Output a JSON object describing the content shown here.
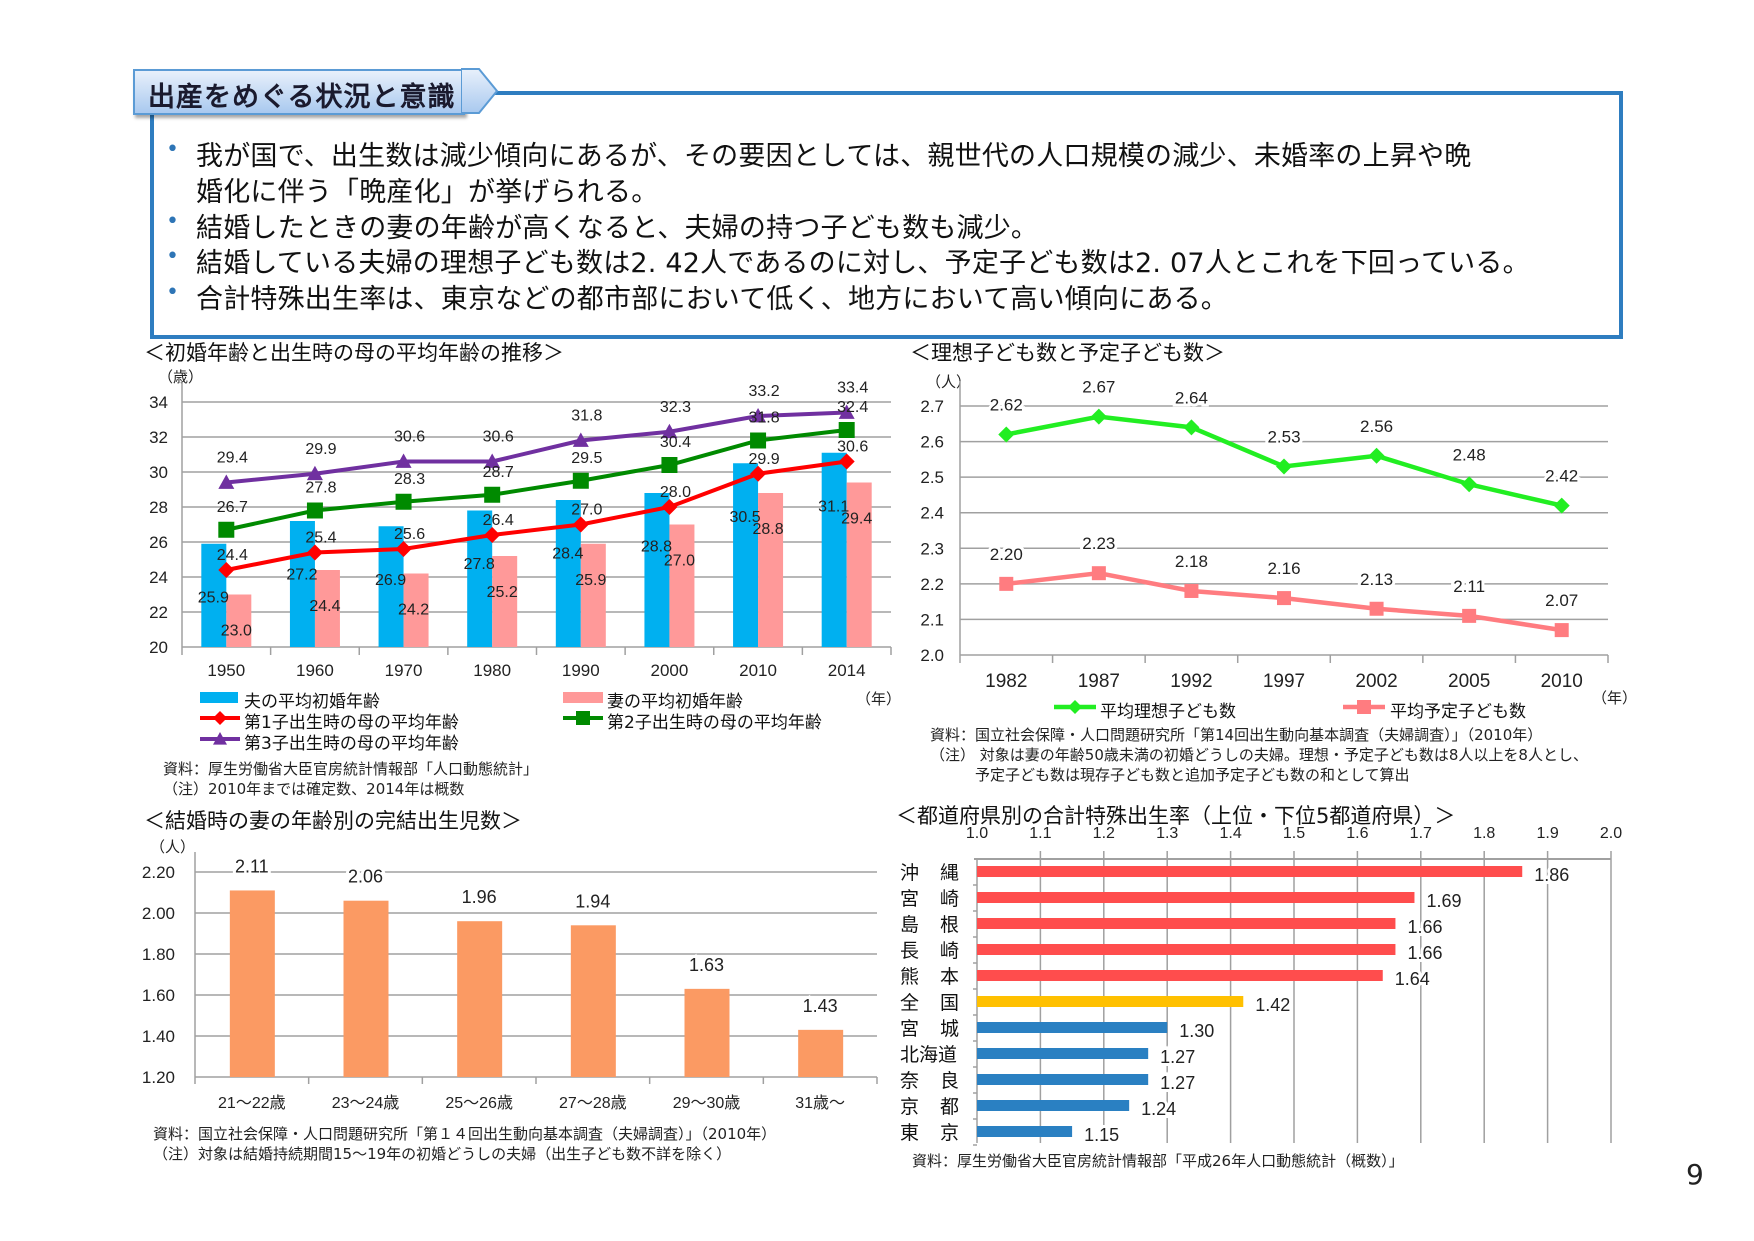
{
  "header": {
    "title": "出産をめぐる状況と意識"
  },
  "bullets": [
    [
      "我が国で、出生数は減少傾向にあるが、その要因としては、親世代の人口規模の減少、未婚率の上昇や晩",
      "婚化に伴う「晩産化」が挙げられる。"
    ],
    [
      "結婚したときの妻の年齢が高くなると、夫婦の持つ子ども数も減少。"
    ],
    [
      "結婚している夫婦の理想子ども数は2. 42人であるのに対し、予定子ども数は2. 07人とこれを下回っている。"
    ],
    [
      "合計特殊出生率は、東京などの都市部において低く、地方において高い傾向にある。"
    ]
  ],
  "page_number": "9",
  "chart_data": [
    {
      "type": "bar+line",
      "title": "＜初婚年齢と出生時の母の平均年齢の推移＞",
      "ylabel": "（歳）",
      "xlabel": "（年）",
      "categories": [
        "1950",
        "1960",
        "1970",
        "1980",
        "1990",
        "2000",
        "2010",
        "2014"
      ],
      "ylim": [
        20,
        34
      ],
      "yticks": [
        "20",
        "22",
        "24",
        "26",
        "28",
        "30",
        "32",
        "34"
      ],
      "grid": true,
      "legend_position": "bottom",
      "series": [
        {
          "name": "夫の平均初婚年齢",
          "kind": "bar",
          "color": "#00b0f0",
          "values": [
            25.9,
            27.2,
            26.9,
            27.8,
            28.4,
            28.8,
            30.5,
            31.1
          ]
        },
        {
          "name": "妻の平均初婚年齢",
          "kind": "bar",
          "color": "#ff9999",
          "values": [
            23.0,
            24.4,
            24.2,
            25.2,
            25.9,
            27.0,
            28.8,
            29.4
          ]
        },
        {
          "name": "第1子出生時の母の平均年齢",
          "kind": "line",
          "marker": "diamond",
          "color": "#ff0000",
          "values": [
            24.4,
            25.4,
            25.6,
            26.4,
            27.0,
            28.0,
            29.9,
            30.6
          ]
        },
        {
          "name": "第2子出生時の母の平均年齢",
          "kind": "line",
          "marker": "square",
          "color": "#008a00",
          "values": [
            26.7,
            27.8,
            28.3,
            28.7,
            29.5,
            30.4,
            31.8,
            32.4
          ]
        },
        {
          "name": "第3子出生時の母の平均年齢",
          "kind": "line",
          "marker": "triangle",
          "color": "#7030a0",
          "values": [
            29.4,
            29.9,
            30.6,
            30.6,
            31.8,
            32.3,
            33.2,
            33.4
          ]
        }
      ],
      "data_labels": {
        "s0": [
          "25.9",
          "27.2",
          "26.9",
          "27.8",
          "28.4",
          "28.8",
          "30.5",
          "31.1"
        ],
        "s1": [
          "23.0",
          "24.4",
          "24.2",
          "25.2",
          "25.9",
          "27.0",
          "28.8",
          "29.4"
        ],
        "s2": [
          "24.4",
          "25.4",
          "25.6",
          "26.4",
          "27.0",
          "28.0",
          "29.9",
          "30.6"
        ],
        "s3": [
          "26.7",
          "27.8",
          "28.3",
          "28.7",
          "29.5",
          "30.4",
          "31.8",
          "32.4"
        ],
        "s4": [
          "29.4",
          "29.9",
          "30.6",
          "30.6",
          "31.8",
          "32.3",
          "33.2",
          "33.4"
        ]
      },
      "source": [
        "資料：厚生労働省大臣官房統計情報部「人口動態統計」",
        "（注）2010年までは確定数、2014年は概数"
      ]
    },
    {
      "type": "line",
      "title": "＜理想子ども数と予定子ども数＞",
      "ylabel": "（人）",
      "xlabel": "（年）",
      "categories": [
        "1982",
        "1987",
        "1992",
        "1997",
        "2002",
        "2005",
        "2010"
      ],
      "ylim": [
        2.0,
        2.7
      ],
      "yticks": [
        "2.0",
        "2.1",
        "2.2",
        "2.3",
        "2.4",
        "2.5",
        "2.6",
        "2.7"
      ],
      "grid": true,
      "legend_position": "bottom",
      "series": [
        {
          "name": "平均理想子ども数",
          "marker": "diamond",
          "color": "#22ee22",
          "values": [
            2.62,
            2.67,
            2.64,
            2.53,
            2.56,
            2.48,
            2.42
          ]
        },
        {
          "name": "平均予定子ども数",
          "marker": "square",
          "color": "#ff7c80",
          "values": [
            2.2,
            2.23,
            2.18,
            2.16,
            2.13,
            2.11,
            2.07
          ]
        }
      ],
      "data_labels": {
        "s0": [
          "2.62",
          "2.67",
          "2.64",
          "2.53",
          "2.56",
          "2.48",
          "2.42"
        ],
        "s1": [
          "2.20",
          "2.23",
          "2.18",
          "2.16",
          "2.13",
          "2.11",
          "2.07"
        ]
      },
      "source": [
        "資料：国立社会保障・人口問題研究所「第14回出生動向基本調査（夫婦調査）」（2010年）",
        "（注） 対象は妻の年齢50歳未満の初婚どうしの夫婦。理想・予定子ども数は8人以上を8人とし、",
        "予定子ども数は現存子ども数と追加予定子ども数の和として算出"
      ]
    },
    {
      "type": "bar",
      "title": "＜結婚時の妻の年齢別の完結出生児数＞",
      "ylabel": "（人）",
      "categories": [
        "21～22歳",
        "23～24歳",
        "25～26歳",
        "27～28歳",
        "29～30歳",
        "31歳～"
      ],
      "values": [
        2.11,
        2.06,
        1.96,
        1.94,
        1.63,
        1.43
      ],
      "data_labels": [
        "2.11",
        "2.06",
        "1.96",
        "1.94",
        "1.63",
        "1.43"
      ],
      "color": "#fb9a63",
      "ylim": [
        1.2,
        2.2
      ],
      "yticks": [
        "1.20",
        "1.40",
        "1.60",
        "1.80",
        "2.00",
        "2.20"
      ],
      "grid": true,
      "source": [
        "資料：国立社会保障・人口問題研究所「第１４回出生動向基本調査（夫婦調査）」（2010年）",
        "（注）対象は結婚持続期間15～19年の初婚どうしの夫婦（出生子ども数不詳を除く）"
      ]
    },
    {
      "type": "horizontal-bar",
      "title": "＜都道府県別の合計特殊出生率（上位・下位5都道府県）＞",
      "xlim": [
        1.0,
        2.0
      ],
      "xticks": [
        "1.0",
        "1.1",
        "1.2",
        "1.3",
        "1.4",
        "1.5",
        "1.6",
        "1.7",
        "1.8",
        "1.9",
        "2.0"
      ],
      "grid": true,
      "rows": [
        {
          "label": [
            "沖",
            "縄"
          ],
          "value": 1.86,
          "text": "1.86",
          "color": "#ff4d4d"
        },
        {
          "label": [
            "宮",
            "崎"
          ],
          "value": 1.69,
          "text": "1.69",
          "color": "#ff4d4d"
        },
        {
          "label": [
            "島",
            "根"
          ],
          "value": 1.66,
          "text": "1.66",
          "color": "#ff4d4d"
        },
        {
          "label": [
            "長",
            "崎"
          ],
          "value": 1.66,
          "text": "1.66",
          "color": "#ff4d4d"
        },
        {
          "label": [
            "熊",
            "本"
          ],
          "value": 1.64,
          "text": "1.64",
          "color": "#ff4d4d"
        },
        {
          "label": [
            "全",
            "国"
          ],
          "value": 1.42,
          "text": "1.42",
          "color": "#ffc000"
        },
        {
          "label": [
            "宮",
            "城"
          ],
          "value": 1.3,
          "text": "1.30",
          "color": "#2a80c2"
        },
        {
          "label": [
            "北海道"
          ],
          "value": 1.27,
          "text": "1.27",
          "color": "#2a80c2"
        },
        {
          "label": [
            "奈",
            "良"
          ],
          "value": 1.27,
          "text": "1.27",
          "color": "#2a80c2"
        },
        {
          "label": [
            "京",
            "都"
          ],
          "value": 1.24,
          "text": "1.24",
          "color": "#2a80c2"
        },
        {
          "label": [
            "東",
            "京"
          ],
          "value": 1.15,
          "text": "1.15",
          "color": "#2a80c2"
        }
      ],
      "source": [
        "資料：厚生労働省大臣官房統計情報部「平成26年人口動態統計（概数）」"
      ]
    }
  ]
}
